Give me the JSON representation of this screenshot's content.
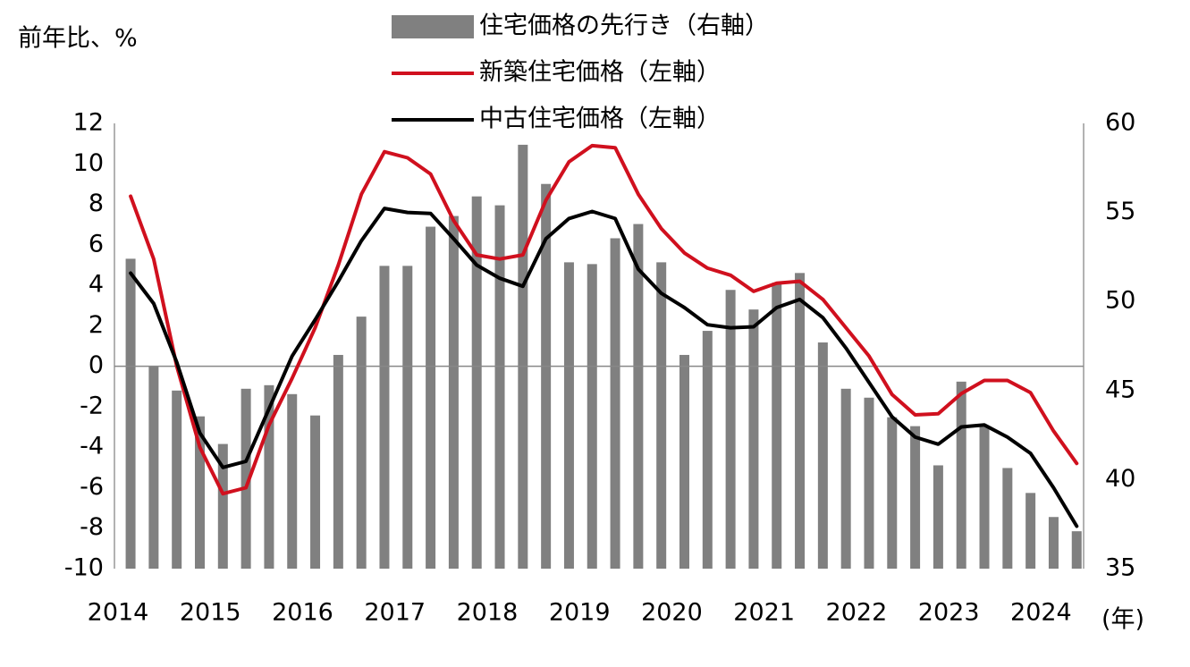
{
  "chart_data": {
    "type": "bar-line",
    "y_label": "前年比、%",
    "x_label": "(年)",
    "categories": [
      "2014",
      null,
      null,
      null,
      "2015",
      null,
      null,
      null,
      "2016",
      null,
      null,
      null,
      "2017",
      null,
      null,
      null,
      "2018",
      null,
      null,
      null,
      "2019",
      null,
      null,
      null,
      "2020",
      null,
      null,
      null,
      "2021",
      null,
      null,
      null,
      "2022",
      null,
      null,
      null,
      "2023",
      null,
      null,
      null,
      "2024",
      null
    ],
    "ylim": [
      -10,
      12
    ],
    "yticks": [
      -10,
      -8,
      -6,
      -4,
      -2,
      0,
      2,
      4,
      6,
      8,
      10,
      12
    ],
    "y2lim": [
      35,
      60
    ],
    "y2ticks": [
      35,
      40,
      45,
      50,
      55,
      60
    ],
    "grid": false,
    "series": [
      {
        "name": "住宅価格の先行き（右軸）",
        "type": "bar",
        "axis": "y2",
        "color": "#808080",
        "values": [
          52.4,
          46.35,
          45.0,
          43.55,
          42.0,
          45.1,
          45.3,
          44.8,
          43.6,
          47.0,
          49.15,
          52.0,
          52.0,
          54.2,
          54.8,
          55.9,
          55.4,
          58.8,
          56.6,
          52.2,
          52.1,
          53.55,
          54.35,
          52.2,
          47.0,
          48.35,
          50.65,
          49.55,
          51.05,
          51.6,
          47.7,
          45.1,
          44.6,
          43.5,
          43.0,
          40.8,
          45.5,
          43.0,
          40.65,
          39.25,
          37.9,
          37.1
        ]
      },
      {
        "name": "新築住宅価格（左軸）",
        "type": "line",
        "color": "#d0101e",
        "values": [
          8.4,
          5.3,
          0.0,
          -4.0,
          -6.3,
          -6.0,
          -2.9,
          -0.6,
          1.9,
          5.0,
          8.5,
          10.6,
          10.3,
          9.5,
          7.2,
          5.5,
          5.3,
          5.5,
          8.2,
          10.1,
          10.9,
          10.8,
          8.5,
          6.8,
          5.6,
          4.85,
          4.5,
          3.7,
          4.1,
          4.2,
          3.3,
          1.9,
          0.5,
          -1.4,
          -2.4,
          -2.35,
          -1.35,
          -0.7,
          -0.7,
          -1.3,
          -3.2,
          -4.8
        ]
      },
      {
        "name": "中古住宅価格（左軸）",
        "type": "line",
        "color": "#000000",
        "values": [
          4.6,
          3.1,
          0.2,
          -3.3,
          -5.0,
          -4.7,
          -2.1,
          0.5,
          2.3,
          4.2,
          6.2,
          7.8,
          7.6,
          7.55,
          6.3,
          5.0,
          4.35,
          3.95,
          6.3,
          7.3,
          7.65,
          7.3,
          4.8,
          3.6,
          2.9,
          2.05,
          1.9,
          1.95,
          2.9,
          3.3,
          2.4,
          0.9,
          -0.8,
          -2.5,
          -3.5,
          -3.85,
          -3.0,
          -2.9,
          -3.5,
          -4.3,
          -6.0,
          -7.9
        ]
      }
    ]
  }
}
